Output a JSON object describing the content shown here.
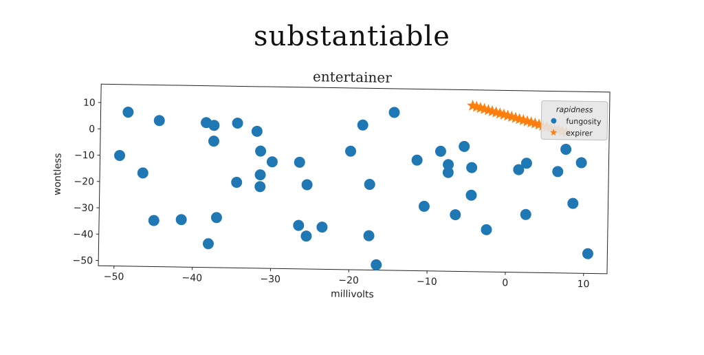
{
  "page": {
    "title": "substantiable"
  },
  "chart_data": {
    "type": "scatter",
    "title": "entertainer",
    "xlabel": "millivolts",
    "ylabel": "wontless",
    "xlim": [
      -52,
      13
    ],
    "ylim": [
      -52,
      17
    ],
    "xticks": [
      -50,
      -40,
      -30,
      -20,
      -10,
      0,
      10
    ],
    "yticks": [
      10,
      0,
      -10,
      -20,
      -30,
      -40,
      -50
    ],
    "grid": false,
    "legend": {
      "title": "rapidness",
      "placement": "top-right"
    },
    "series": [
      {
        "name": "fungosity",
        "marker": "circle",
        "color": "#1f77b4",
        "points": [
          [
            -48.5,
            6.5
          ],
          [
            -44.5,
            3.5
          ],
          [
            -49.5,
            -10
          ],
          [
            -46.5,
            -16.5
          ],
          [
            -45,
            -34.5
          ],
          [
            -41.5,
            -34
          ],
          [
            -38.5,
            3
          ],
          [
            -37.5,
            2
          ],
          [
            -37.5,
            -4
          ],
          [
            -37,
            -33
          ],
          [
            -38,
            -43
          ],
          [
            -34.5,
            3
          ],
          [
            -34.5,
            -19.5
          ],
          [
            -32,
            0
          ],
          [
            -31.5,
            -7.5
          ],
          [
            -31.5,
            -16.5
          ],
          [
            -31.5,
            -21
          ],
          [
            -30,
            -11.5
          ],
          [
            -26.5,
            -11.5
          ],
          [
            -26.5,
            -35.5
          ],
          [
            -25.5,
            -20
          ],
          [
            -25.5,
            -39.5
          ],
          [
            -23.5,
            -36
          ],
          [
            -20,
            -7
          ],
          [
            -18.5,
            3
          ],
          [
            -17.5,
            -19.5
          ],
          [
            -17.5,
            -39
          ],
          [
            -16.5,
            -50
          ],
          [
            -14.5,
            8
          ],
          [
            -11.5,
            -10
          ],
          [
            -10.5,
            -27.5
          ],
          [
            -8.5,
            -6.5
          ],
          [
            -7.5,
            -11.5
          ],
          [
            -7.5,
            -14.5
          ],
          [
            -6.5,
            -30.5
          ],
          [
            -5.5,
            -4.5
          ],
          [
            -4.5,
            -12.5
          ],
          [
            -4.5,
            -23
          ],
          [
            -2.5,
            -36
          ],
          [
            1.5,
            -13
          ],
          [
            2.5,
            -10.5
          ],
          [
            2.5,
            -30
          ],
          [
            6.5,
            -13.5
          ],
          [
            7.5,
            -5
          ],
          [
            8.5,
            -25.5
          ],
          [
            9.5,
            -10
          ],
          [
            10.5,
            -44.5
          ]
        ]
      },
      {
        "name": "expirer",
        "marker": "star",
        "color": "#ff7f0e",
        "points": [
          [
            -4.5,
            11
          ],
          [
            -4,
            10.6
          ],
          [
            -3.5,
            10.2
          ],
          [
            -3,
            9.8
          ],
          [
            -2.5,
            9.4
          ],
          [
            -2,
            9
          ],
          [
            -1.5,
            8.6
          ],
          [
            -1,
            8.2
          ],
          [
            -0.5,
            7.8
          ],
          [
            0,
            7.4
          ],
          [
            0.5,
            7.0
          ],
          [
            1,
            6.6
          ],
          [
            1.5,
            6.2
          ],
          [
            2,
            5.8
          ],
          [
            2.5,
            5.4
          ],
          [
            3,
            5.0
          ],
          [
            3.5,
            4.6
          ],
          [
            4,
            4.2
          ],
          [
            4.5,
            3.8
          ],
          [
            5,
            3.4
          ],
          [
            5.5,
            3.0
          ],
          [
            6,
            2.6
          ],
          [
            6.5,
            2.2
          ],
          [
            7,
            1.8
          ],
          [
            7.5,
            1.4
          ]
        ]
      }
    ]
  }
}
